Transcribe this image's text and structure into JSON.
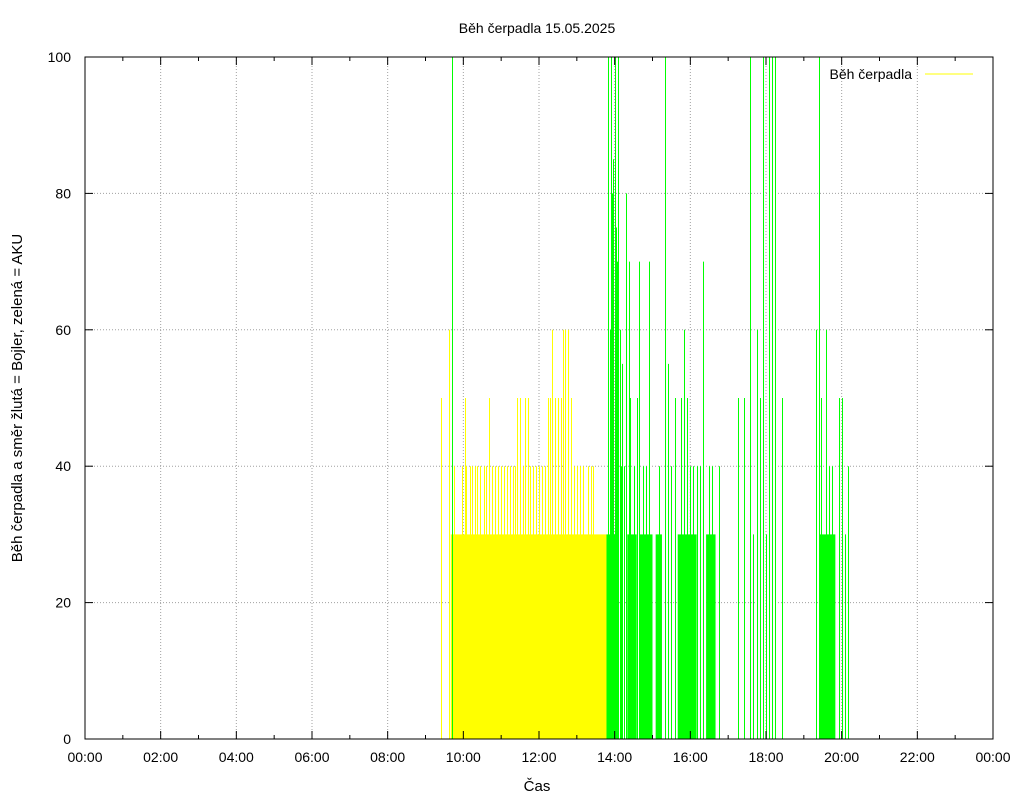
{
  "chart_data": {
    "type": "bar",
    "title": "Běh čerpadla 15.05.2025",
    "xlabel": "Čas",
    "ylabel": "Běh čerpadla a směr žlutá = Bojler, zelená = AKU",
    "xlim": [
      "00:00",
      "24:00"
    ],
    "ylim": [
      0,
      100
    ],
    "grid": true,
    "legend_position": "top-right",
    "x_ticks": [
      "00:00",
      "02:00",
      "04:00",
      "06:00",
      "08:00",
      "10:00",
      "12:00",
      "14:00",
      "16:00",
      "18:00",
      "20:00",
      "22:00",
      "00:00"
    ],
    "y_ticks": [
      0,
      20,
      40,
      60,
      80,
      100
    ],
    "legend": [
      {
        "name": "Běh čerpadla",
        "color": "#ffff00"
      }
    ],
    "series": [
      {
        "color": "#ffff00",
        "blocks": [
          {
            "start": "09:40",
            "end": "13:47",
            "value": 30
          }
        ],
        "spikes": [
          {
            "time": "09:25",
            "value": 50
          },
          {
            "time": "09:38",
            "value": 60
          },
          {
            "time": "09:45",
            "value": 40
          },
          {
            "time": "09:58",
            "value": 40
          },
          {
            "time": "10:02",
            "value": 50
          },
          {
            "time": "10:05",
            "value": 40
          },
          {
            "time": "10:10",
            "value": 40
          },
          {
            "time": "10:14",
            "value": 40
          },
          {
            "time": "10:18",
            "value": 40
          },
          {
            "time": "10:22",
            "value": 40
          },
          {
            "time": "10:27",
            "value": 40
          },
          {
            "time": "10:32",
            "value": 40
          },
          {
            "time": "10:36",
            "value": 40
          },
          {
            "time": "10:40",
            "value": 50
          },
          {
            "time": "10:45",
            "value": 40
          },
          {
            "time": "10:50",
            "value": 40
          },
          {
            "time": "10:55",
            "value": 40
          },
          {
            "time": "11:00",
            "value": 40
          },
          {
            "time": "11:05",
            "value": 40
          },
          {
            "time": "11:10",
            "value": 40
          },
          {
            "time": "11:14",
            "value": 40
          },
          {
            "time": "11:18",
            "value": 40
          },
          {
            "time": "11:22",
            "value": 40
          },
          {
            "time": "11:25",
            "value": 50
          },
          {
            "time": "11:30",
            "value": 50
          },
          {
            "time": "11:35",
            "value": 40
          },
          {
            "time": "11:38",
            "value": 50
          },
          {
            "time": "11:42",
            "value": 50
          },
          {
            "time": "11:46",
            "value": 40
          },
          {
            "time": "11:50",
            "value": 40
          },
          {
            "time": "11:55",
            "value": 40
          },
          {
            "time": "12:00",
            "value": 40
          },
          {
            "time": "12:05",
            "value": 40
          },
          {
            "time": "12:10",
            "value": 40
          },
          {
            "time": "12:14",
            "value": 50
          },
          {
            "time": "12:18",
            "value": 50
          },
          {
            "time": "12:20",
            "value": 60
          },
          {
            "time": "12:25",
            "value": 50
          },
          {
            "time": "12:30",
            "value": 50
          },
          {
            "time": "12:35",
            "value": 50
          },
          {
            "time": "12:38",
            "value": 60
          },
          {
            "time": "12:42",
            "value": 60
          },
          {
            "time": "12:46",
            "value": 60
          },
          {
            "time": "12:50",
            "value": 50
          },
          {
            "time": "12:55",
            "value": 40
          },
          {
            "time": "13:00",
            "value": 40
          },
          {
            "time": "13:05",
            "value": 40
          },
          {
            "time": "13:10",
            "value": 40
          },
          {
            "time": "13:18",
            "value": 40
          },
          {
            "time": "13:22",
            "value": 40
          },
          {
            "time": "13:25",
            "value": 40
          }
        ]
      },
      {
        "color": "#00ff00",
        "blocks": [
          {
            "start": "13:47",
            "end": "14:05",
            "value": 30
          },
          {
            "start": "14:20",
            "end": "14:35",
            "value": 30
          },
          {
            "start": "14:40",
            "end": "15:00",
            "value": 30
          },
          {
            "start": "15:05",
            "end": "15:15",
            "value": 30
          },
          {
            "start": "15:40",
            "end": "16:10",
            "value": 30
          },
          {
            "start": "16:25",
            "end": "16:40",
            "value": 30
          },
          {
            "start": "19:25",
            "end": "19:50",
            "value": 30
          }
        ],
        "spikes": [
          {
            "time": "09:42",
            "value": 100
          },
          {
            "time": "13:50",
            "value": 100
          },
          {
            "time": "13:52",
            "value": 60
          },
          {
            "time": "13:54",
            "value": 100
          },
          {
            "time": "13:56",
            "value": 80
          },
          {
            "time": "13:58",
            "value": 85
          },
          {
            "time": "14:00",
            "value": 100
          },
          {
            "time": "14:02",
            "value": 75
          },
          {
            "time": "14:04",
            "value": 70
          },
          {
            "time": "14:06",
            "value": 100
          },
          {
            "time": "14:08",
            "value": 60
          },
          {
            "time": "14:10",
            "value": 40
          },
          {
            "time": "14:12",
            "value": 55
          },
          {
            "time": "14:15",
            "value": 40
          },
          {
            "time": "14:18",
            "value": 80
          },
          {
            "time": "14:22",
            "value": 70
          },
          {
            "time": "14:25",
            "value": 50
          },
          {
            "time": "14:30",
            "value": 40
          },
          {
            "time": "14:35",
            "value": 50
          },
          {
            "time": "14:38",
            "value": 70
          },
          {
            "time": "14:45",
            "value": 40
          },
          {
            "time": "14:50",
            "value": 40
          },
          {
            "time": "14:55",
            "value": 70
          },
          {
            "time": "15:10",
            "value": 40
          },
          {
            "time": "15:20",
            "value": 100
          },
          {
            "time": "15:25",
            "value": 55
          },
          {
            "time": "15:30",
            "value": 40
          },
          {
            "time": "15:35",
            "value": 50
          },
          {
            "time": "15:45",
            "value": 50
          },
          {
            "time": "15:50",
            "value": 60
          },
          {
            "time": "15:55",
            "value": 50
          },
          {
            "time": "16:00",
            "value": 40
          },
          {
            "time": "16:05",
            "value": 40
          },
          {
            "time": "16:10",
            "value": 40
          },
          {
            "time": "16:15",
            "value": 40
          },
          {
            "time": "16:20",
            "value": 70
          },
          {
            "time": "16:30",
            "value": 40
          },
          {
            "time": "16:35",
            "value": 40
          },
          {
            "time": "16:45",
            "value": 40
          },
          {
            "time": "17:15",
            "value": 50
          },
          {
            "time": "17:25",
            "value": 50
          },
          {
            "time": "17:35",
            "value": 100
          },
          {
            "time": "17:40",
            "value": 30
          },
          {
            "time": "17:45",
            "value": 60
          },
          {
            "time": "17:50",
            "value": 50
          },
          {
            "time": "17:55",
            "value": 100
          },
          {
            "time": "18:00",
            "value": 30
          },
          {
            "time": "18:05",
            "value": 100
          },
          {
            "time": "18:10",
            "value": 100
          },
          {
            "time": "18:15",
            "value": 100
          },
          {
            "time": "18:25",
            "value": 50
          },
          {
            "time": "19:20",
            "value": 60
          },
          {
            "time": "19:24",
            "value": 100
          },
          {
            "time": "19:28",
            "value": 50
          },
          {
            "time": "19:35",
            "value": 60
          },
          {
            "time": "19:40",
            "value": 40
          },
          {
            "time": "19:45",
            "value": 40
          },
          {
            "time": "19:55",
            "value": 50
          },
          {
            "time": "20:00",
            "value": 50
          },
          {
            "time": "20:05",
            "value": 30
          },
          {
            "time": "20:10",
            "value": 40
          }
        ]
      }
    ]
  }
}
